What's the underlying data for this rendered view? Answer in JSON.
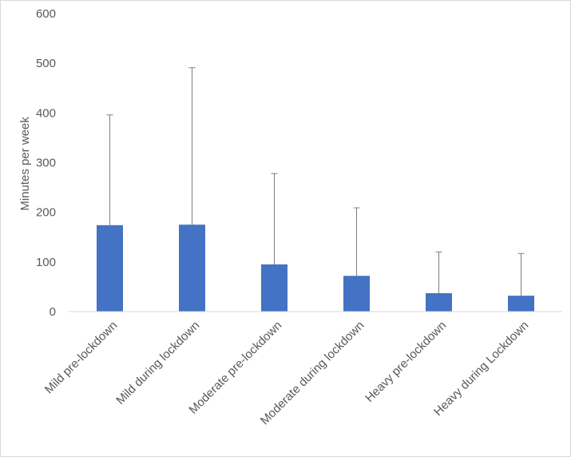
{
  "chart_data": {
    "type": "bar",
    "title": "",
    "xlabel": "",
    "ylabel": "Minutes per week",
    "ylim": [
      0,
      600
    ],
    "yticks": [
      "0",
      "100",
      "200",
      "300",
      "400",
      "500",
      "600"
    ],
    "grid": false,
    "categories": [
      "Mild pre-lockdown",
      "Mild during lockdown",
      "Moderate pre-lockdown",
      "Moderate during lockdown",
      "Heavy pre-lockdown",
      "Heavy during Lockdown"
    ],
    "values": [
      174,
      175,
      95,
      72,
      37,
      32
    ],
    "error_upper": [
      396,
      491,
      278,
      209,
      120,
      117
    ],
    "bar_color": "#4472c4",
    "error_bar_color": "#7f7f7f"
  }
}
